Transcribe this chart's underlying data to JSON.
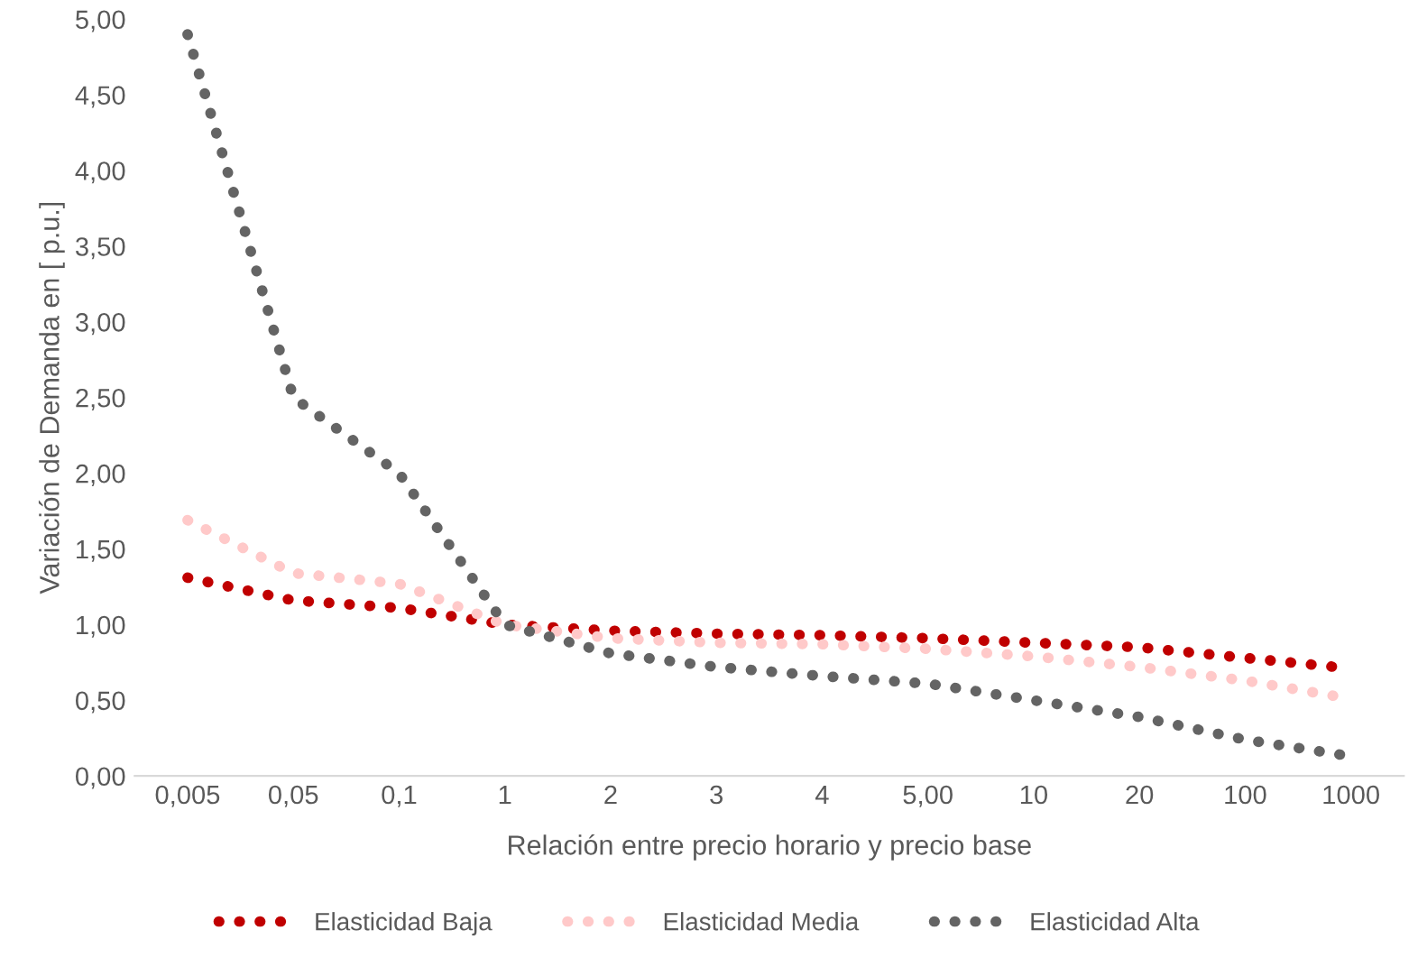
{
  "chart_data": {
    "type": "line",
    "xlabel": "Relación entre precio horario y precio base",
    "ylabel": "Variación de Demanda en [ p.u.]",
    "categories": [
      "0,005",
      "0,05",
      "0,1",
      "1",
      "2",
      "3",
      "4",
      "5,00",
      "10",
      "20",
      "100",
      "1000"
    ],
    "series": [
      {
        "name": "Elasticidad Baja",
        "color": "#c00000",
        "values": [
          1.31,
          1.16,
          1.11,
          1.0,
          0.96,
          0.94,
          0.93,
          0.91,
          0.88,
          0.85,
          0.78,
          0.71
        ]
      },
      {
        "name": "Elasticidad Media",
        "color": "#ffc9c9",
        "values": [
          1.69,
          1.34,
          1.27,
          1.0,
          0.91,
          0.88,
          0.87,
          0.84,
          0.79,
          0.72,
          0.63,
          0.51
        ]
      },
      {
        "name": "Elasticidad Alta",
        "color": "#646464",
        "values": [
          4.9,
          2.5,
          2.0,
          1.0,
          0.81,
          0.72,
          0.66,
          0.61,
          0.5,
          0.39,
          0.24,
          0.13
        ]
      }
    ],
    "ylim": [
      0,
      5
    ],
    "yticks": [
      {
        "value": 0,
        "label": "0,00"
      },
      {
        "value": 0.5,
        "label": "0,50"
      },
      {
        "value": 1,
        "label": "1,00"
      },
      {
        "value": 1.5,
        "label": "1,50"
      },
      {
        "value": 2,
        "label": "2,00"
      },
      {
        "value": 2.5,
        "label": "2,50"
      },
      {
        "value": 3,
        "label": "3,00"
      },
      {
        "value": 3.5,
        "label": "3,50"
      },
      {
        "value": 4,
        "label": "4,00"
      },
      {
        "value": 4.5,
        "label": "4,50"
      },
      {
        "value": 5,
        "label": "5,00"
      }
    ],
    "grid": false,
    "legend": "bottom",
    "line_style": "dotted"
  }
}
